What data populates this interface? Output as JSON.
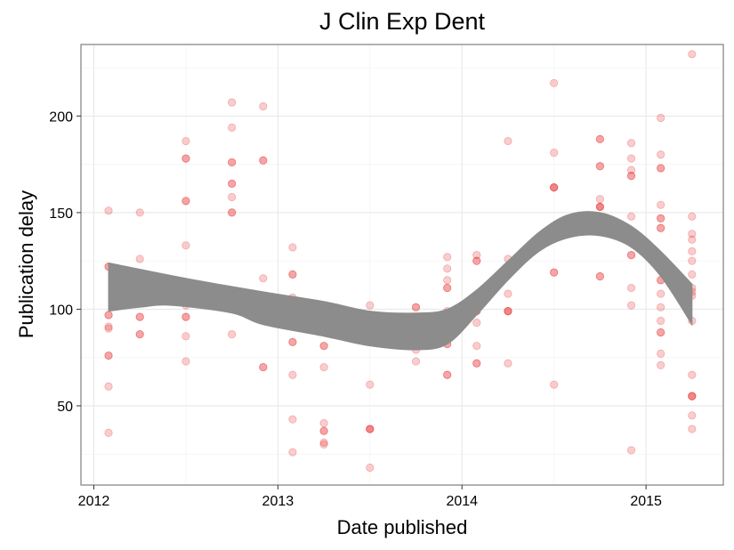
{
  "chart_data": {
    "type": "scatter",
    "title": "J Clin Exp Dent",
    "xlabel": "Date published",
    "ylabel": "Publication delay",
    "x_ticks": [
      {
        "value": 2012,
        "label": "2012"
      },
      {
        "value": 2013,
        "label": "2013"
      },
      {
        "value": 2014,
        "label": "2014"
      },
      {
        "value": 2015,
        "label": "2015"
      }
    ],
    "y_ticks": [
      {
        "value": 50,
        "label": "50"
      },
      {
        "value": 100,
        "label": "100"
      },
      {
        "value": 150,
        "label": "150"
      },
      {
        "value": 200,
        "label": "200"
      }
    ],
    "xlim": [
      2011.93,
      2015.42
    ],
    "ylim": [
      9,
      237
    ],
    "grid": true,
    "point_color": "#e41a1c",
    "point_opacity": 0.22,
    "smooth_color": "#8c8c8c",
    "points": [
      {
        "x": 2012.08,
        "y": [
          151,
          122,
          122,
          97,
          97,
          91,
          90,
          76,
          76,
          60,
          36
        ]
      },
      {
        "x": 2012.25,
        "y": [
          150,
          126,
          113,
          113,
          96,
          96,
          87,
          87
        ]
      },
      {
        "x": 2012.5,
        "y": [
          187,
          178,
          178,
          156,
          156,
          133,
          102,
          96,
          96,
          86,
          73
        ]
      },
      {
        "x": 2012.75,
        "y": [
          207,
          194,
          176,
          176,
          165,
          165,
          158,
          150,
          150,
          87
        ]
      },
      {
        "x": 2012.92,
        "y": [
          205,
          177,
          177,
          116,
          98,
          98,
          70,
          70
        ]
      },
      {
        "x": 2013.08,
        "y": [
          132,
          118,
          118,
          106,
          104,
          104,
          83,
          83,
          66,
          43,
          26
        ]
      },
      {
        "x": 2013.25,
        "y": [
          90,
          90,
          81,
          81,
          70,
          41,
          37,
          37,
          31,
          30
        ]
      },
      {
        "x": 2013.5,
        "y": [
          102,
          97,
          61,
          38,
          38,
          38,
          18
        ]
      },
      {
        "x": 2013.75,
        "y": [
          101,
          101,
          96,
          96,
          79,
          73
        ]
      },
      {
        "x": 2013.92,
        "y": [
          127,
          121,
          115,
          111,
          111,
          99,
          82,
          82,
          66,
          66
        ]
      },
      {
        "x": 2014.08,
        "y": [
          128,
          125,
          125,
          107,
          105,
          105,
          99,
          99,
          93,
          81,
          72,
          72
        ]
      },
      {
        "x": 2014.25,
        "y": [
          187,
          126,
          122,
          122,
          108,
          99,
          99,
          99,
          72
        ]
      },
      {
        "x": 2014.42,
        "y": [
          133
        ]
      },
      {
        "x": 2014.5,
        "y": [
          217,
          181,
          163,
          163,
          163,
          142,
          142,
          119,
          119,
          61
        ]
      },
      {
        "x": 2014.75,
        "y": [
          188,
          188,
          174,
          174,
          157,
          153,
          153,
          153,
          117,
          117
        ]
      },
      {
        "x": 2014.92,
        "y": [
          186,
          178,
          172,
          169,
          169,
          148,
          137,
          137,
          137,
          128,
          128,
          111,
          102,
          27
        ]
      },
      {
        "x": 2015.08,
        "y": [
          199,
          180,
          173,
          173,
          154,
          147,
          147,
          142,
          142,
          122,
          122,
          115,
          115,
          108,
          101,
          94,
          88,
          88,
          77,
          71
        ]
      },
      {
        "x": 2015.25,
        "y": [
          232,
          148,
          139,
          136,
          130,
          125,
          118,
          111,
          109,
          107,
          94,
          66,
          55,
          55,
          55,
          45,
          38
        ]
      }
    ],
    "smooth_upper": [
      {
        "x": 2012.08,
        "y": 124
      },
      {
        "x": 2012.5,
        "y": 116
      },
      {
        "x": 2012.92,
        "y": 109
      },
      {
        "x": 2013.25,
        "y": 104
      },
      {
        "x": 2013.5,
        "y": 99
      },
      {
        "x": 2013.75,
        "y": 98
      },
      {
        "x": 2013.92,
        "y": 100
      },
      {
        "x": 2014.08,
        "y": 110
      },
      {
        "x": 2014.25,
        "y": 125
      },
      {
        "x": 2014.42,
        "y": 140
      },
      {
        "x": 2014.58,
        "y": 149
      },
      {
        "x": 2014.75,
        "y": 150
      },
      {
        "x": 2014.92,
        "y": 143
      },
      {
        "x": 2015.08,
        "y": 130
      },
      {
        "x": 2015.25,
        "y": 113
      }
    ],
    "smooth_lower": [
      {
        "x": 2012.08,
        "y": 99
      },
      {
        "x": 2012.25,
        "y": 101
      },
      {
        "x": 2012.42,
        "y": 102
      },
      {
        "x": 2012.75,
        "y": 98
      },
      {
        "x": 2012.92,
        "y": 92
      },
      {
        "x": 2013.25,
        "y": 86
      },
      {
        "x": 2013.5,
        "y": 81
      },
      {
        "x": 2013.75,
        "y": 79
      },
      {
        "x": 2013.92,
        "y": 82
      },
      {
        "x": 2014.08,
        "y": 97
      },
      {
        "x": 2014.25,
        "y": 115
      },
      {
        "x": 2014.42,
        "y": 130
      },
      {
        "x": 2014.58,
        "y": 137
      },
      {
        "x": 2014.75,
        "y": 138
      },
      {
        "x": 2014.92,
        "y": 132
      },
      {
        "x": 2015.08,
        "y": 117
      },
      {
        "x": 2015.25,
        "y": 92
      }
    ]
  }
}
